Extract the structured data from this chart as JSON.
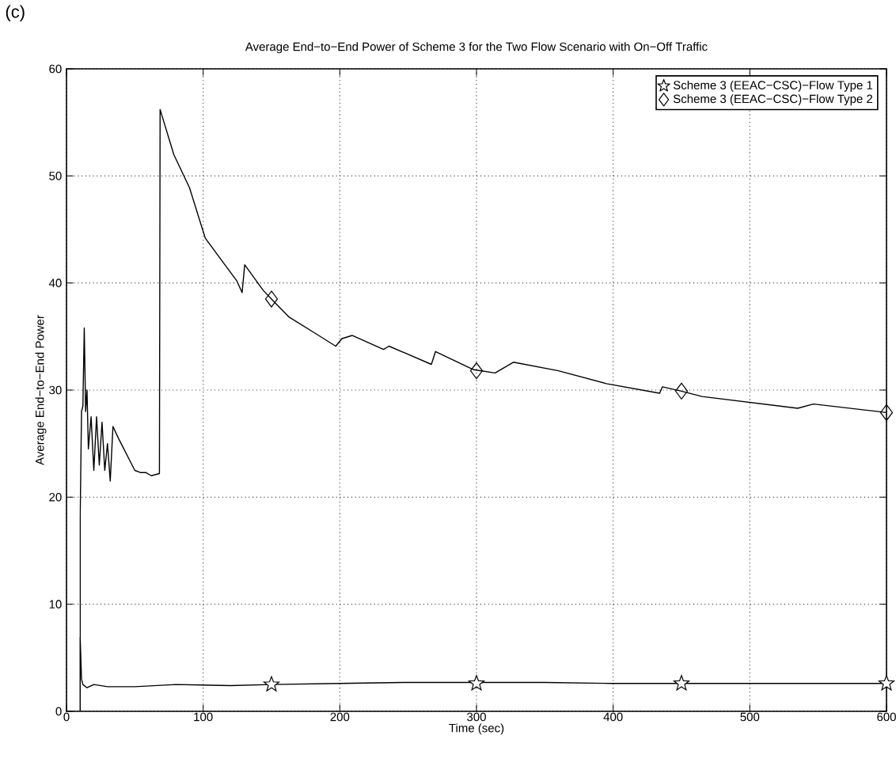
{
  "chart_data": {
    "type": "line",
    "title": "Average End−to−End Power of Scheme 3 for the Two Flow Scenario with On−Off Traffic",
    "xlabel": "Time (sec)",
    "ylabel": "Average End−to−End Power",
    "annotations": [
      "(c)"
    ],
    "xlim": [
      0,
      600
    ],
    "ylim": [
      0,
      60
    ],
    "xticks": [
      0,
      100,
      200,
      300,
      400,
      500,
      600
    ],
    "yticks": [
      0,
      10,
      20,
      30,
      40,
      50,
      60
    ],
    "grid": true,
    "legend": "top right",
    "line_style": "solid",
    "series": [
      {
        "name": "Scheme 3 (EEAC−CSC)−Flow Type 1",
        "color": "#000000",
        "x": [
          10,
          10,
          11,
          12,
          15,
          20,
          30,
          50,
          80,
          120,
          150,
          200,
          250,
          300,
          350,
          400,
          450,
          500,
          550,
          600
        ],
        "values": [
          0,
          6.9,
          3,
          2.5,
          2.2,
          2.5,
          2.3,
          2.3,
          2.5,
          2.4,
          2.5,
          2.6,
          2.7,
          2.7,
          2.7,
          2.6,
          2.6,
          2.6,
          2.6,
          2.6
        ]
      },
      {
        "type": "scatter",
        "color": "#000000",
        "marker": "star",
        "x": [
          150,
          300,
          450,
          600
        ],
        "values": [
          2.5,
          2.6,
          2.6,
          2.6
        ]
      },
      {
        "name": "Scheme 3 (EEAC−CSC)−Flow Type 2",
        "color": "#000000",
        "x": [
          10,
          10,
          11,
          12,
          13,
          14,
          15,
          16,
          18,
          20,
          22,
          24,
          26,
          28,
          30,
          32,
          34,
          38,
          42,
          46,
          50,
          54,
          58,
          62,
          68,
          68.5,
          78.5,
          90,
          101.5,
          113,
          124.6,
          128.5,
          130.4,
          144,
          150,
          163,
          182,
          197,
          201.5,
          209,
          232,
          236,
          267,
          270,
          298,
          313.6,
          327,
          360,
          395,
          434,
          436,
          450,
          465,
          535,
          546.6,
          600
        ],
        "values": [
          0,
          18,
          28,
          28.5,
          35.8,
          28,
          30,
          24.5,
          27.5,
          22.5,
          27.5,
          23,
          27,
          22.5,
          25,
          21.5,
          26.6,
          25.5,
          24.5,
          23.5,
          22.5,
          22.3,
          22.3,
          22,
          22.2,
          56.2,
          52,
          48.9,
          44.2,
          42.2,
          40.2,
          39.1,
          41.7,
          39.3,
          38.5,
          36.8,
          35.3,
          34.1,
          34.8,
          35.1,
          33.8,
          34.1,
          32.4,
          33.6,
          31.9,
          31.6,
          32.6,
          31.8,
          30.6,
          29.7,
          30.3,
          29.9,
          29.4,
          28.3,
          28.7,
          27.9
        ]
      },
      {
        "type": "scatter",
        "color": "#000000",
        "marker": "diamond",
        "x": [
          150,
          300,
          450,
          600
        ],
        "values": [
          38.5,
          31.8,
          29.9,
          27.9
        ]
      }
    ]
  }
}
